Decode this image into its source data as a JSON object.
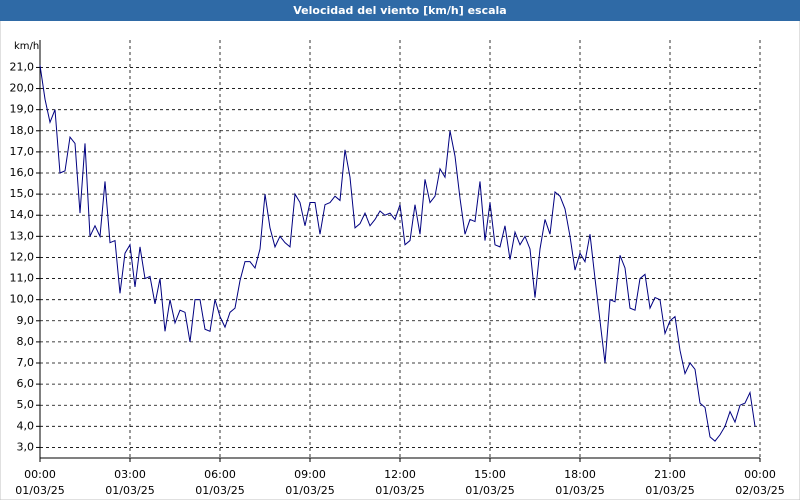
{
  "chart_data": {
    "type": "line",
    "title": "Velocidad del viento [km/h] escala",
    "y_unit": "km/h",
    "x": [
      0,
      10,
      20,
      30,
      40,
      50,
      60,
      70,
      80,
      90,
      100,
      110,
      120,
      130,
      140,
      150,
      160,
      170,
      180,
      190,
      200,
      210,
      220,
      230,
      240,
      250,
      260,
      270,
      280,
      290,
      300,
      310,
      320,
      330,
      340,
      350,
      360,
      370,
      380,
      390,
      400,
      410,
      420,
      430,
      440,
      450,
      460,
      470,
      480,
      490,
      500,
      510,
      520,
      530,
      540,
      550,
      560,
      570,
      580,
      590,
      600,
      610,
      620,
      630,
      640,
      650,
      660,
      670,
      680,
      690,
      700,
      710,
      720,
      730,
      740,
      750,
      760,
      770,
      780,
      790,
      800,
      810,
      820,
      830,
      840,
      850,
      860,
      870,
      880,
      890,
      900,
      910,
      920,
      930,
      940,
      950,
      960,
      970,
      980,
      990,
      1000,
      1010,
      1020,
      1030,
      1040,
      1050,
      1060,
      1070,
      1080,
      1090,
      1100,
      1110,
      1120,
      1130,
      1140,
      1150,
      1160,
      1170,
      1180,
      1190,
      1200,
      1210,
      1220,
      1230,
      1240,
      1250,
      1260,
      1270,
      1280,
      1290,
      1300,
      1310,
      1320,
      1330,
      1340,
      1350,
      1360,
      1370,
      1380,
      1390,
      1400,
      1410,
      1420,
      1430
    ],
    "series": [
      {
        "color": "#000080",
        "values": [
          21.1,
          19.5,
          18.4,
          19.0,
          16.0,
          16.1,
          17.7,
          17.4,
          14.1,
          17.4,
          13.0,
          13.5,
          13.0,
          15.6,
          12.7,
          12.8,
          10.3,
          12.2,
          12.6,
          10.6,
          12.5,
          11.0,
          11.1,
          9.8,
          11.0,
          8.5,
          10.0,
          8.9,
          9.5,
          9.4,
          8.0,
          10.0,
          10.0,
          8.6,
          8.5,
          10.0,
          9.2,
          8.7,
          9.4,
          9.6,
          10.9,
          11.8,
          11.8,
          11.5,
          12.4,
          15.0,
          13.4,
          12.5,
          13.0,
          12.7,
          12.5,
          15.0,
          14.6,
          13.5,
          14.6,
          14.6,
          13.1,
          14.5,
          14.6,
          14.9,
          14.7,
          17.1,
          15.8,
          13.4,
          13.6,
          14.1,
          13.5,
          13.8,
          14.2,
          14.0,
          14.1,
          13.8,
          14.5,
          12.6,
          12.8,
          14.5,
          13.1,
          15.7,
          14.6,
          14.9,
          16.2,
          15.8,
          18.0,
          16.8,
          14.8,
          13.1,
          13.8,
          13.7,
          15.6,
          12.8,
          14.6,
          12.6,
          12.5,
          13.5,
          11.9,
          13.2,
          12.6,
          13.0,
          12.4,
          10.1,
          12.4,
          13.8,
          13.1,
          15.1,
          14.9,
          14.3,
          13.0,
          11.4,
          12.2,
          11.8,
          13.1,
          11.0,
          9.0,
          7.0,
          10.0,
          9.9,
          12.1,
          11.5,
          9.6,
          9.5,
          11.0,
          11.2,
          9.6,
          10.1,
          10.0,
          8.4,
          9.0,
          9.2,
          7.6,
          6.5,
          7.0,
          6.7,
          5.1,
          4.9,
          3.5,
          3.3,
          3.6,
          4.0,
          4.7,
          4.2,
          5.0,
          5.1,
          5.6,
          4.0
        ]
      }
    ],
    "xlim": [
      0,
      1440
    ],
    "xticks": [
      {
        "value": 0,
        "label": "00:00",
        "date": "01/03/25"
      },
      {
        "value": 180,
        "label": "03:00",
        "date": "01/03/25"
      },
      {
        "value": 360,
        "label": "06:00",
        "date": "01/03/25"
      },
      {
        "value": 540,
        "label": "09:00",
        "date": "01/03/25"
      },
      {
        "value": 720,
        "label": "12:00",
        "date": "01/03/25"
      },
      {
        "value": 900,
        "label": "15:00",
        "date": "01/03/25"
      },
      {
        "value": 1080,
        "label": "18:00",
        "date": "01/03/25"
      },
      {
        "value": 1260,
        "label": "21:00",
        "date": "01/03/25"
      },
      {
        "value": 1440,
        "label": "00:00",
        "date": "02/03/25"
      }
    ],
    "ylim": [
      2.5,
      22.3
    ],
    "yticks": [
      {
        "value": 3,
        "label": "3,0"
      },
      {
        "value": 4,
        "label": "4,0"
      },
      {
        "value": 5,
        "label": "5,0"
      },
      {
        "value": 6,
        "label": "6,0"
      },
      {
        "value": 7,
        "label": "7,0"
      },
      {
        "value": 8,
        "label": "8,0"
      },
      {
        "value": 9,
        "label": "9,0"
      },
      {
        "value": 10,
        "label": "10,0"
      },
      {
        "value": 11,
        "label": "11,0"
      },
      {
        "value": 12,
        "label": "12,0"
      },
      {
        "value": 13,
        "label": "13,0"
      },
      {
        "value": 14,
        "label": "14,0"
      },
      {
        "value": 15,
        "label": "15,0"
      },
      {
        "value": 16,
        "label": "16,0"
      },
      {
        "value": 17,
        "label": "17,0"
      },
      {
        "value": 18,
        "label": "18,0"
      },
      {
        "value": 19,
        "label": "19,0"
      },
      {
        "value": 20,
        "label": "20,0"
      },
      {
        "value": 21,
        "label": "21,0"
      }
    ],
    "grid": true
  }
}
